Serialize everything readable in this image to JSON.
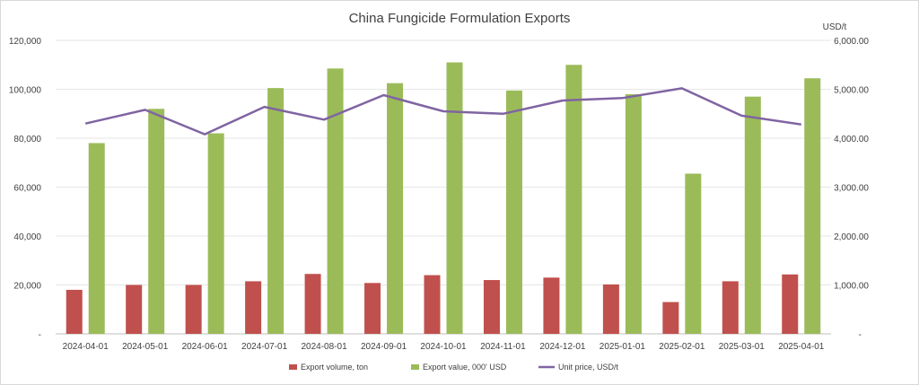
{
  "chart_data": {
    "type": "bar",
    "title": "China Fungicide Formulation Exports",
    "categories": [
      "2024-04-01",
      "2024-05-01",
      "2024-06-01",
      "2024-07-01",
      "2024-08-01",
      "2024-09-01",
      "2024-10-01",
      "2024-11-01",
      "2024-12-01",
      "2025-01-01",
      "2025-02-01",
      "2025-03-01",
      "2025-04-01"
    ],
    "series": [
      {
        "name": "Export volume, ton",
        "kind": "bar",
        "axis": "left",
        "color": "#c0504d",
        "values": [
          18000,
          20000,
          20000,
          21500,
          24500,
          20800,
          24000,
          22000,
          23000,
          20200,
          13000,
          21500,
          24300
        ]
      },
      {
        "name": "Export value, 000' USD",
        "kind": "bar",
        "axis": "left",
        "color": "#9bbb59",
        "values": [
          78000,
          92000,
          82000,
          100500,
          108500,
          102500,
          111000,
          99500,
          110000,
          98000,
          65500,
          97000,
          104500
        ]
      },
      {
        "name": "Unit price, USD/t",
        "kind": "line",
        "axis": "right",
        "color": "#8064a2",
        "values": [
          4300,
          4580,
          4080,
          4640,
          4380,
          4880,
          4550,
          4500,
          4770,
          4820,
          5020,
          4460,
          4280
        ]
      }
    ],
    "y_left": {
      "min": 0,
      "max": 120000,
      "ticks": [
        "-",
        "20,000",
        "40,000",
        "60,000",
        "80,000",
        "100,000",
        "120,000"
      ]
    },
    "y_right": {
      "label": "USD/t",
      "min": 0,
      "max": 6000,
      "ticks": [
        "-",
        "1,000.00",
        "2,000.00",
        "3,000.00",
        "4,000.00",
        "5,000.00",
        "6,000.00"
      ]
    },
    "grid": true,
    "legend_position": "bottom"
  }
}
